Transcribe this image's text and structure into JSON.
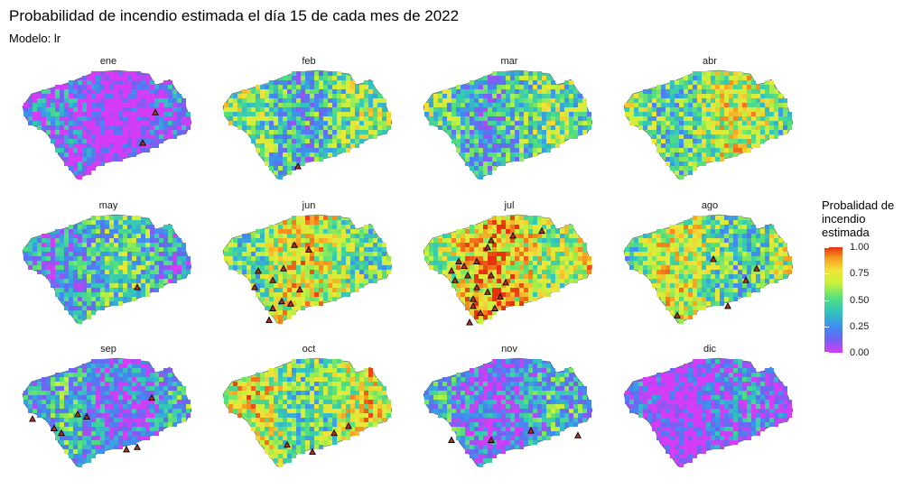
{
  "title": "Probabilidad de incendio estimada el día 15 de cada mes de 2022",
  "subtitle": "Modelo: lr",
  "chart_data": {
    "type": "heatmap",
    "title": "Probabilidad de incendio estimada el día 15 de cada mes de 2022",
    "subtitle": "Modelo: lr",
    "facets": [
      {
        "label": "ene",
        "level": 0.08,
        "fires": [
          [
            0.76,
            0.36
          ],
          [
            0.69,
            0.62
          ]
        ]
      },
      {
        "label": "feb",
        "level": 0.45,
        "fires": [
          [
            0.44,
            0.82
          ]
        ]
      },
      {
        "label": "mar",
        "level": 0.42,
        "fires": []
      },
      {
        "label": "abr",
        "level": 0.55,
        "fires": []
      },
      {
        "label": "may",
        "level": 0.35,
        "fires": [
          [
            0.66,
            0.62
          ]
        ]
      },
      {
        "label": "jun",
        "level": 0.6,
        "fires": [
          [
            0.22,
            0.48
          ],
          [
            0.3,
            0.56
          ],
          [
            0.2,
            0.62
          ],
          [
            0.35,
            0.74
          ],
          [
            0.4,
            0.76
          ],
          [
            0.3,
            0.8
          ],
          [
            0.45,
            0.64
          ],
          [
            0.42,
            0.26
          ],
          [
            0.5,
            0.3
          ],
          [
            0.28,
            0.9
          ],
          [
            0.36,
            0.46
          ]
        ]
      },
      {
        "label": "jul",
        "level": 0.7,
        "fires": [
          [
            0.22,
            0.4
          ],
          [
            0.25,
            0.44
          ],
          [
            0.18,
            0.48
          ],
          [
            0.27,
            0.52
          ],
          [
            0.2,
            0.56
          ],
          [
            0.32,
            0.4
          ],
          [
            0.38,
            0.28
          ],
          [
            0.4,
            0.22
          ],
          [
            0.52,
            0.18
          ],
          [
            0.68,
            0.14
          ],
          [
            0.4,
            0.52
          ],
          [
            0.32,
            0.62
          ],
          [
            0.38,
            0.66
          ],
          [
            0.3,
            0.72
          ],
          [
            0.45,
            0.7
          ],
          [
            0.48,
            0.58
          ],
          [
            0.34,
            0.84
          ],
          [
            0.28,
            0.92
          ],
          [
            0.3,
            0.78
          ],
          [
            0.42,
            0.8
          ]
        ]
      },
      {
        "label": "ago",
        "level": 0.55,
        "fires": [
          [
            0.52,
            0.38
          ],
          [
            0.7,
            0.56
          ],
          [
            0.76,
            0.46
          ],
          [
            0.6,
            0.78
          ],
          [
            0.32,
            0.86
          ]
        ]
      },
      {
        "label": "sep",
        "level": 0.25,
        "fires": [
          [
            0.08,
            0.52
          ],
          [
            0.2,
            0.6
          ],
          [
            0.24,
            0.64
          ],
          [
            0.33,
            0.48
          ],
          [
            0.38,
            0.5
          ],
          [
            0.74,
            0.34
          ],
          [
            0.6,
            0.78
          ],
          [
            0.66,
            0.76
          ]
        ]
      },
      {
        "label": "oct",
        "level": 0.6,
        "fires": [
          [
            0.64,
            0.64
          ],
          [
            0.72,
            0.58
          ],
          [
            0.38,
            0.74
          ],
          [
            0.52,
            0.8
          ]
        ]
      },
      {
        "label": "nov",
        "level": 0.25,
        "fires": [
          [
            0.18,
            0.7
          ],
          [
            0.4,
            0.7
          ],
          [
            0.62,
            0.62
          ],
          [
            0.88,
            0.66
          ]
        ]
      },
      {
        "label": "dic",
        "level": 0.1,
        "fires": []
      }
    ],
    "legend": {
      "title": "Probalidad de incendio estimada",
      "placement": "right",
      "ticks": [
        "1.00",
        "0.75",
        "0.50",
        "0.25",
        "0.00"
      ],
      "range": [
        0,
        1
      ],
      "colors": [
        "#d53cf5",
        "#6f63f2",
        "#3d8ef0",
        "#33c8b8",
        "#55e07a",
        "#c8f23a",
        "#f2e33a",
        "#f69a20",
        "#e83010"
      ]
    },
    "grid": false
  }
}
